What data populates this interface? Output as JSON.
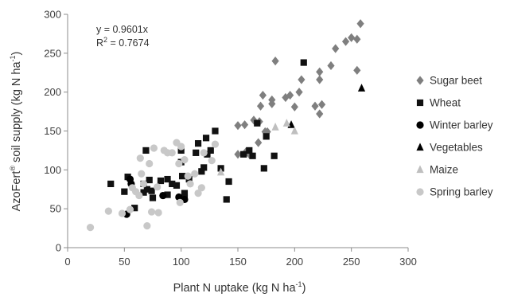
{
  "chart_data": {
    "type": "scatter",
    "xlabel": {
      "main": "Plant N uptake (kg N ha",
      "sup": "-1",
      "end": ")"
    },
    "ylabel": {
      "pre": "AzoFert",
      "sup": "®",
      "main": " soil supply (kg N ha",
      "sup2": "-1",
      "end": ")"
    },
    "xlim": [
      0,
      300
    ],
    "ylim": [
      0,
      300
    ],
    "xticks": [
      "0",
      "50",
      "100",
      "150",
      "200",
      "250",
      "300"
    ],
    "yticks": [
      "0",
      "50",
      "100",
      "150",
      "200",
      "250",
      "300"
    ],
    "grid": false,
    "legend_position": "right",
    "annotations": {
      "equation": "y = 0.9601x",
      "r2_pre": "R",
      "r2_sup": "2",
      "r2_post": " = 0.7674"
    },
    "series": [
      {
        "name": "Sugar beet",
        "marker": "diamond",
        "color": "#7f7f7f",
        "points": [
          [
            258,
            288
          ],
          [
            255,
            268
          ],
          [
            250,
            270
          ],
          [
            255,
            228
          ],
          [
            245,
            265
          ],
          [
            236,
            256
          ],
          [
            232,
            234
          ],
          [
            222,
            226
          ],
          [
            222,
            216
          ],
          [
            224,
            184
          ],
          [
            222,
            172
          ],
          [
            218,
            182
          ],
          [
            204,
            200
          ],
          [
            196,
            196
          ],
          [
            192,
            193
          ],
          [
            183,
            240
          ],
          [
            180,
            190
          ],
          [
            172,
            196
          ],
          [
            170,
            182
          ],
          [
            174,
            149
          ],
          [
            169,
            162
          ],
          [
            164,
            164
          ],
          [
            156,
            158
          ],
          [
            150,
            157
          ],
          [
            150,
            120
          ],
          [
            157,
            123
          ],
          [
            160,
            120
          ],
          [
            168,
            135
          ],
          [
            176,
            149
          ],
          [
            180,
            185
          ],
          [
            200,
            181
          ],
          [
            206,
            216
          ]
        ]
      },
      {
        "name": "Wheat",
        "marker": "square",
        "color": "#111111",
        "points": [
          [
            38,
            82
          ],
          [
            50,
            72
          ],
          [
            53,
            91
          ],
          [
            59,
            51
          ],
          [
            67,
            82
          ],
          [
            67,
            71
          ],
          [
            69,
            125
          ],
          [
            70,
            75
          ],
          [
            72,
            87
          ],
          [
            74,
            73
          ],
          [
            75,
            64
          ],
          [
            82,
            86
          ],
          [
            88,
            88
          ],
          [
            88,
            68
          ],
          [
            92,
            82
          ],
          [
            96,
            80
          ],
          [
            100,
            125
          ],
          [
            100,
            110
          ],
          [
            101,
            92
          ],
          [
            103,
            64
          ],
          [
            103,
            70
          ],
          [
            107,
            88
          ],
          [
            113,
            122
          ],
          [
            115,
            134
          ],
          [
            118,
            98
          ],
          [
            120,
            103
          ],
          [
            122,
            141
          ],
          [
            123,
            120
          ],
          [
            126,
            125
          ],
          [
            130,
            150
          ],
          [
            135,
            102
          ],
          [
            140,
            62
          ],
          [
            142,
            85
          ],
          [
            155,
            120
          ],
          [
            160,
            125
          ],
          [
            163,
            118
          ],
          [
            167,
            160
          ],
          [
            173,
            102
          ],
          [
            175,
            143
          ],
          [
            182,
            118
          ],
          [
            208,
            238
          ]
        ]
      },
      {
        "name": "Winter barley",
        "marker": "circle",
        "color": "#000000",
        "points": [
          [
            52,
            43
          ],
          [
            55,
            88
          ],
          [
            56,
            82
          ],
          [
            84,
            67
          ],
          [
            98,
            65
          ],
          [
            103,
            62
          ]
        ]
      },
      {
        "name": "Vegetables",
        "marker": "triangle",
        "color": "#000000",
        "points": [
          [
            197,
            158
          ],
          [
            259,
            205
          ]
        ]
      },
      {
        "name": "Maize",
        "marker": "triangle",
        "color": "#bfbfbf",
        "points": [
          [
            135,
            97
          ],
          [
            183,
            155
          ],
          [
            193,
            160
          ],
          [
            200,
            150
          ]
        ]
      },
      {
        "name": "Spring barley",
        "marker": "circle",
        "color": "#c8c8c8",
        "points": [
          [
            20,
            26
          ],
          [
            36,
            47
          ],
          [
            48,
            44
          ],
          [
            55,
            49
          ],
          [
            57,
            77
          ],
          [
            60,
            72
          ],
          [
            63,
            67
          ],
          [
            64,
            115
          ],
          [
            65,
            95
          ],
          [
            67,
            82
          ],
          [
            70,
            28
          ],
          [
            72,
            108
          ],
          [
            74,
            46
          ],
          [
            76,
            128
          ],
          [
            79,
            78
          ],
          [
            80,
            45
          ],
          [
            85,
            125
          ],
          [
            88,
            122
          ],
          [
            92,
            122
          ],
          [
            96,
            135
          ],
          [
            98,
            108
          ],
          [
            99,
            58
          ],
          [
            100,
            130
          ],
          [
            103,
            113
          ],
          [
            106,
            92
          ],
          [
            108,
            82
          ],
          [
            112,
            95
          ],
          [
            115,
            70
          ],
          [
            118,
            77
          ],
          [
            120,
            122
          ],
          [
            127,
            112
          ],
          [
            130,
            133
          ]
        ]
      }
    ]
  }
}
